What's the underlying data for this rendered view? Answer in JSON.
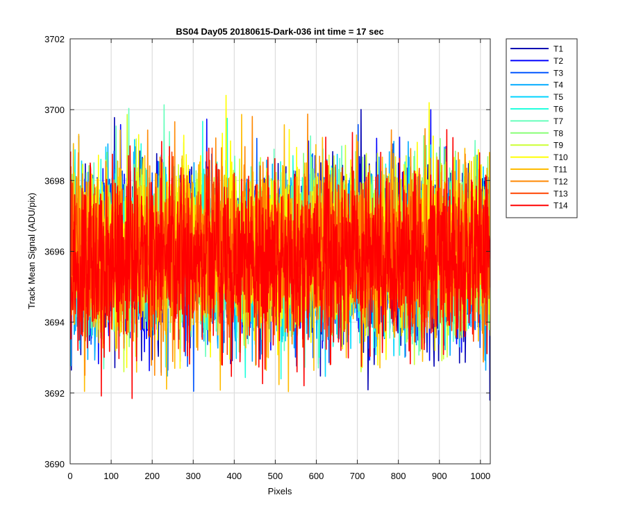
{
  "chart_data": {
    "type": "line",
    "title": "BS04 Day05 20180615-Dark-036 int time = 17 sec",
    "xlabel": "Pixels",
    "ylabel": "Track Mean Signal (ADU/pix)",
    "xlim": [
      0,
      1024
    ],
    "ylim": [
      3690,
      3702
    ],
    "x_ticks": [
      0,
      100,
      200,
      300,
      400,
      500,
      600,
      700,
      800,
      900,
      1000
    ],
    "y_ticks": [
      3690,
      3692,
      3694,
      3696,
      3698,
      3700,
      3702
    ],
    "grid": true,
    "legend_position": "outside-top-right",
    "x": {
      "start": 1,
      "end": 1024,
      "step": 1
    },
    "series": [
      {
        "name": "T1",
        "color": "#0000b2",
        "mean": 3695.9,
        "noise_min": 3691.8,
        "noise_max": 3700.8
      },
      {
        "name": "T2",
        "color": "#0000ff",
        "mean": 3695.9,
        "noise_min": 3691.9,
        "noise_max": 3700.0
      },
      {
        "name": "T3",
        "color": "#0055ff",
        "mean": 3695.9,
        "noise_min": 3692.0,
        "noise_max": 3699.9
      },
      {
        "name": "T4",
        "color": "#00aaff",
        "mean": 3695.9,
        "noise_min": 3691.7,
        "noise_max": 3699.9
      },
      {
        "name": "T5",
        "color": "#00d4ff",
        "mean": 3695.9,
        "noise_min": 3692.3,
        "noise_max": 3700.0
      },
      {
        "name": "T6",
        "color": "#22ffdd",
        "mean": 3696.0,
        "noise_min": 3692.4,
        "noise_max": 3700.2
      },
      {
        "name": "T7",
        "color": "#66ffbb",
        "mean": 3696.0,
        "noise_min": 3692.5,
        "noise_max": 3700.5
      },
      {
        "name": "T8",
        "color": "#88ff77",
        "mean": 3696.0,
        "noise_min": 3692.6,
        "noise_max": 3700.2
      },
      {
        "name": "T9",
        "color": "#ccff33",
        "mean": 3696.1,
        "noise_min": 3692.6,
        "noise_max": 3701.0
      },
      {
        "name": "T10",
        "color": "#ffff00",
        "mean": 3696.1,
        "noise_min": 3692.7,
        "noise_max": 3701.1
      },
      {
        "name": "T11",
        "color": "#ffbb00",
        "mean": 3696.0,
        "noise_min": 3691.7,
        "noise_max": 3700.4
      },
      {
        "name": "T12",
        "color": "#ff8800",
        "mean": 3696.0,
        "noise_min": 3692.5,
        "noise_max": 3700.6
      },
      {
        "name": "T13",
        "color": "#ff4400",
        "mean": 3695.9,
        "noise_min": 3692.8,
        "noise_max": 3700.2
      },
      {
        "name": "T14",
        "color": "#ff0000",
        "mean": 3695.8,
        "noise_min": 3691.0,
        "noise_max": 3700.1
      }
    ]
  }
}
